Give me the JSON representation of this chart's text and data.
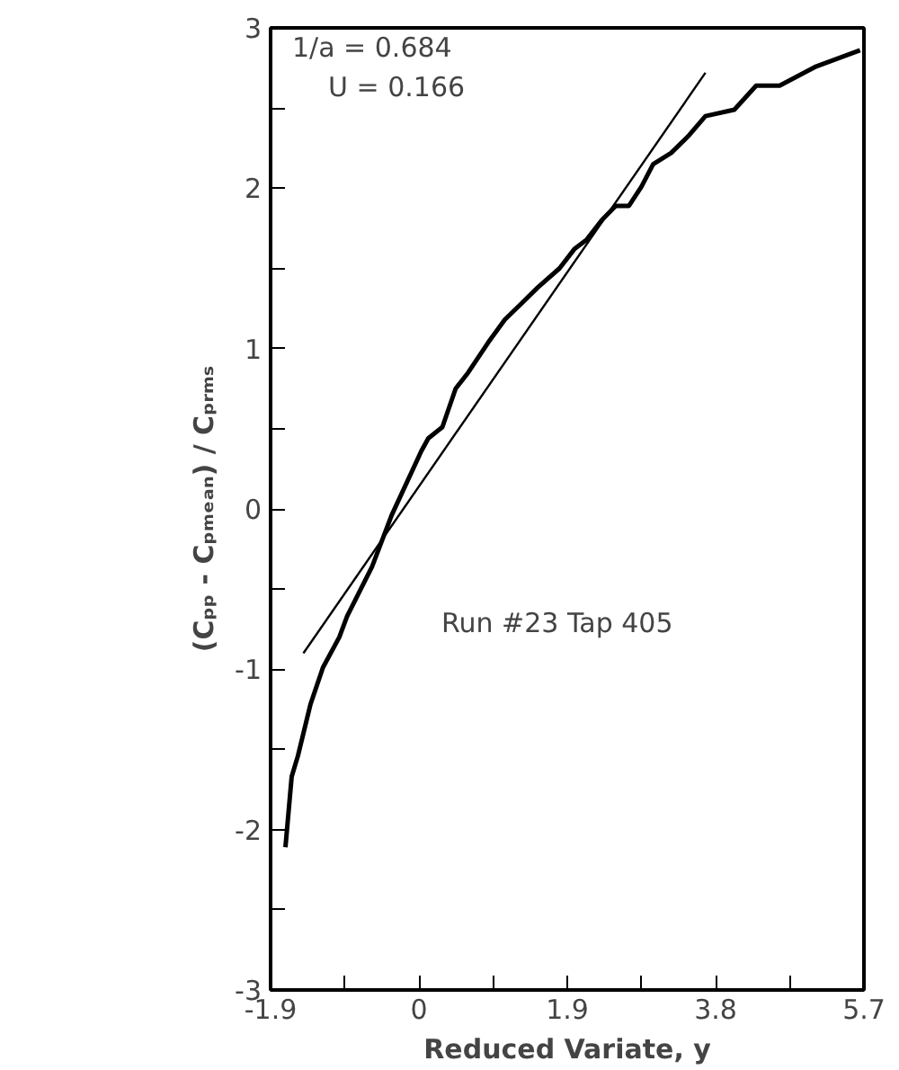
{
  "chart_data": {
    "type": "line",
    "xlabel": "Reduced Variate, y",
    "ylabel": "(Cₚₚ - Cₚₘₑₐₙ) / Cₚᵣₘₛ",
    "xlim": [
      -1.9,
      5.7
    ],
    "ylim": [
      -3,
      3
    ],
    "xticks": [
      -1.9,
      {
        "value": -0.95,
        "label": null
      },
      0,
      {
        "value": 0.95,
        "label": null
      },
      1.9,
      {
        "value": 2.85,
        "label": null
      },
      3.8,
      {
        "value": 4.75,
        "label": null
      },
      5.7
    ],
    "yticks": [
      -3,
      {
        "value": -2.5,
        "label": null
      },
      -2,
      {
        "value": -1.5,
        "label": null
      },
      -1,
      {
        "value": -0.5,
        "label": null
      },
      0,
      {
        "value": 0.5,
        "label": null
      },
      1,
      {
        "value": 1.5,
        "label": null
      },
      2,
      {
        "value": 2.5,
        "label": null
      },
      3
    ],
    "grid": false,
    "marker": "none",
    "line_style": "solid",
    "annotations": [
      "1/a = 0.684",
      "U = 0.166",
      "Run #23  Tap 405"
    ],
    "series": [
      {
        "color": "#000000",
        "x": [
          -1.71,
          -1.63,
          -1.55,
          -1.39,
          -1.23,
          -1.02,
          -0.92,
          -0.6,
          -0.35,
          0.03,
          0.12,
          0.3,
          0.47,
          0.63,
          0.89,
          1.1,
          1.29,
          1.52,
          1.8,
          1.99,
          2.15,
          2.34,
          2.52,
          2.69,
          2.85,
          3.0,
          3.23,
          3.46,
          3.67,
          4.04,
          4.32,
          4.62,
          5.09,
          5.65
        ],
        "values": [
          -2.11,
          -1.67,
          -1.54,
          -1.22,
          -0.99,
          -0.8,
          -0.67,
          -0.36,
          -0.04,
          0.36,
          0.44,
          0.51,
          0.75,
          0.85,
          1.04,
          1.18,
          1.27,
          1.38,
          1.5,
          1.62,
          1.68,
          1.8,
          1.89,
          1.89,
          2.01,
          2.15,
          2.22,
          2.33,
          2.45,
          2.49,
          2.64,
          2.64,
          2.76,
          2.86
        ]
      },
      {
        "color": "#000000",
        "x": [
          -1.48,
          3.67
        ],
        "values": [
          -0.9,
          2.72
        ]
      }
    ]
  }
}
